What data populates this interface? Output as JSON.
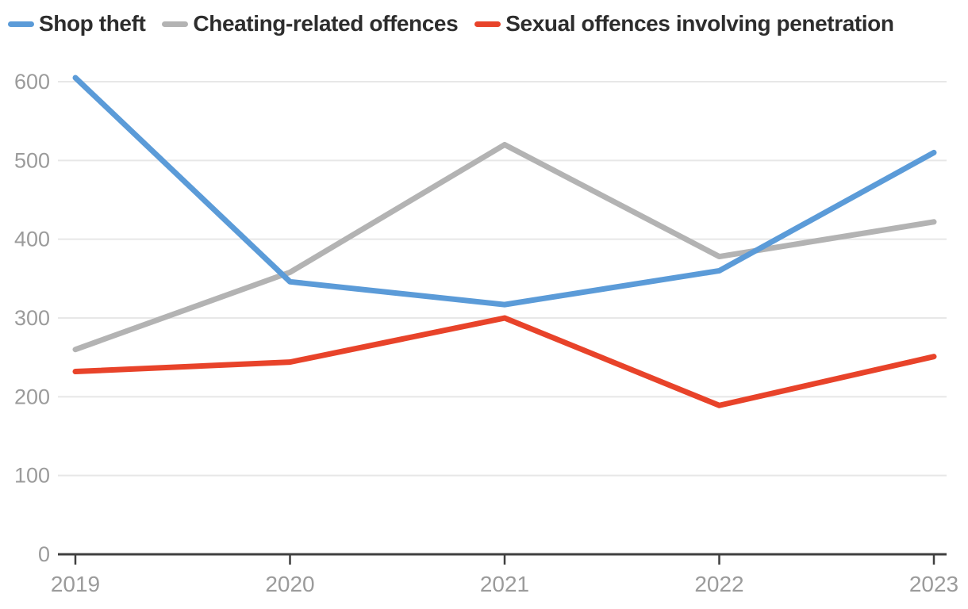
{
  "colors": {
    "background": "#ffffff",
    "grid": "#e7e7e7",
    "axis": "#3f3f3f",
    "tick_label": "#9b9b9b",
    "legend_text": "#2d2d2d",
    "blue": "#5b9bd8",
    "gray": "#b3b3b3",
    "red": "#e8432a"
  },
  "chart_data": {
    "type": "line",
    "title": "",
    "xlabel": "",
    "ylabel": "",
    "x": [
      "2019",
      "2020",
      "2021",
      "2022",
      "2023"
    ],
    "series": [
      {
        "id": "shop-theft",
        "name": "Shop theft",
        "color": "#5b9bd8",
        "values": [
          605,
          346,
          317,
          360,
          510
        ]
      },
      {
        "id": "cheating-related-offences",
        "name": "Cheating-related offences",
        "color": "#b3b3b3",
        "values": [
          260,
          358,
          520,
          378,
          422
        ]
      },
      {
        "id": "sexual-offences-involving-penetration",
        "name": "Sexual offences involving penetration",
        "color": "#e8432a",
        "values": [
          232,
          244,
          300,
          189,
          251
        ]
      }
    ],
    "ylim": [
      0,
      600
    ],
    "yticks": [
      0,
      100,
      200,
      300,
      400,
      500,
      600
    ],
    "grid": true,
    "legend_position": "top"
  }
}
